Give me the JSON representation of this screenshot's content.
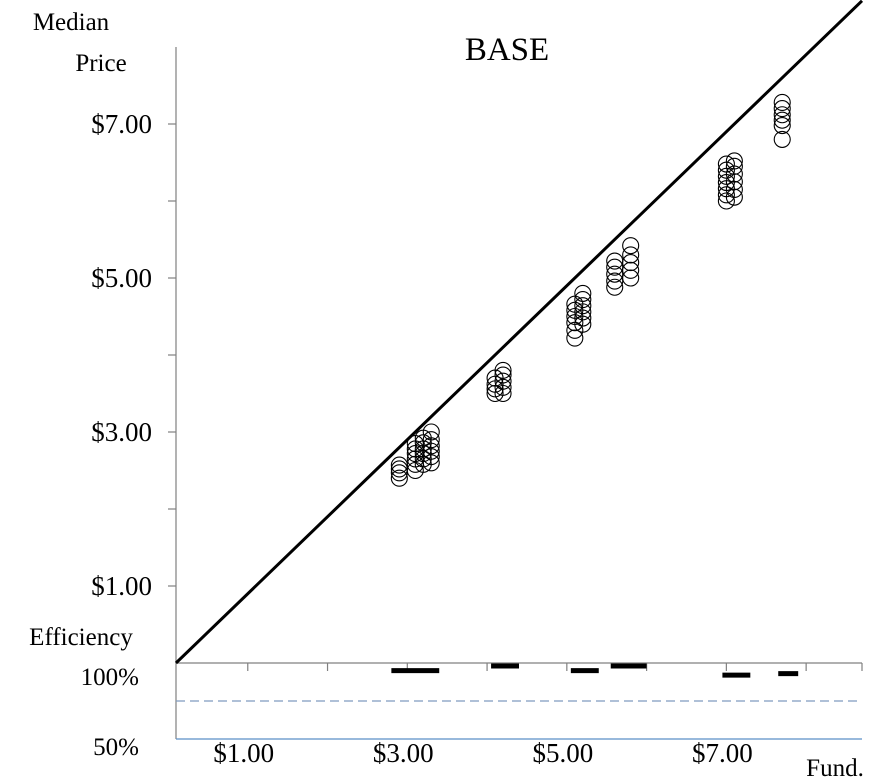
{
  "chart_data": {
    "type": "scatter",
    "title": "BASE",
    "y_axis_label_lines": [
      "Median",
      "Price"
    ],
    "x_axis_label": "Fund.",
    "efficiency_label": "Efficiency",
    "ylim": [
      0,
      8
    ],
    "xlim": [
      0,
      8.6
    ],
    "y_ticks": [
      1,
      2,
      3,
      4,
      5,
      6,
      7
    ],
    "y_tick_labels": [
      {
        "value": 1,
        "label": "$1.00"
      },
      {
        "value": 3,
        "label": "$3.00"
      },
      {
        "value": 5,
        "label": "$5.00"
      },
      {
        "value": 7,
        "label": "$7.00"
      }
    ],
    "x_ticks": [
      1,
      2,
      3,
      4,
      5,
      6,
      7,
      8
    ],
    "x_tick_labels": [
      {
        "value": 1,
        "label": "$1.00"
      },
      {
        "value": 3,
        "label": "$3.00"
      },
      {
        "value": 5,
        "label": "$5.00"
      },
      {
        "value": 7,
        "label": "$7.00"
      }
    ],
    "reference_line": {
      "name": "",
      "from": [
        0,
        0
      ],
      "to": [
        8.6,
        8.6
      ],
      "color": "#000000"
    },
    "marker_color": "#000000",
    "series": [
      {
        "name": "",
        "points": [
          {
            "x": 2.8,
            "y": 2.4
          },
          {
            "x": 2.8,
            "y": 2.47
          },
          {
            "x": 2.8,
            "y": 2.52
          },
          {
            "x": 2.8,
            "y": 2.57
          },
          {
            "x": 3.0,
            "y": 2.5
          },
          {
            "x": 3.0,
            "y": 2.58
          },
          {
            "x": 3.0,
            "y": 2.65
          },
          {
            "x": 3.0,
            "y": 2.72
          },
          {
            "x": 3.0,
            "y": 2.78
          },
          {
            "x": 3.0,
            "y": 2.85
          },
          {
            "x": 3.1,
            "y": 2.58
          },
          {
            "x": 3.1,
            "y": 2.65
          },
          {
            "x": 3.1,
            "y": 2.72
          },
          {
            "x": 3.1,
            "y": 2.78
          },
          {
            "x": 3.1,
            "y": 2.86
          },
          {
            "x": 3.1,
            "y": 2.92
          },
          {
            "x": 3.2,
            "y": 2.6
          },
          {
            "x": 3.2,
            "y": 2.68
          },
          {
            "x": 3.2,
            "y": 2.75
          },
          {
            "x": 3.2,
            "y": 2.82
          },
          {
            "x": 3.2,
            "y": 2.9
          },
          {
            "x": 3.2,
            "y": 3.0
          },
          {
            "x": 4.0,
            "y": 3.5
          },
          {
            "x": 4.0,
            "y": 3.56
          },
          {
            "x": 4.0,
            "y": 3.62
          },
          {
            "x": 4.0,
            "y": 3.7
          },
          {
            "x": 4.1,
            "y": 3.5
          },
          {
            "x": 4.1,
            "y": 3.58
          },
          {
            "x": 4.1,
            "y": 3.66
          },
          {
            "x": 4.1,
            "y": 3.74
          },
          {
            "x": 4.1,
            "y": 3.8
          },
          {
            "x": 5.0,
            "y": 4.22
          },
          {
            "x": 5.0,
            "y": 4.32
          },
          {
            "x": 5.0,
            "y": 4.42
          },
          {
            "x": 5.0,
            "y": 4.5
          },
          {
            "x": 5.0,
            "y": 4.58
          },
          {
            "x": 5.0,
            "y": 4.66
          },
          {
            "x": 5.1,
            "y": 4.4
          },
          {
            "x": 5.1,
            "y": 4.48
          },
          {
            "x": 5.1,
            "y": 4.56
          },
          {
            "x": 5.1,
            "y": 4.64
          },
          {
            "x": 5.1,
            "y": 4.72
          },
          {
            "x": 5.1,
            "y": 4.8
          },
          {
            "x": 5.5,
            "y": 4.88
          },
          {
            "x": 5.5,
            "y": 4.96
          },
          {
            "x": 5.5,
            "y": 5.05
          },
          {
            "x": 5.5,
            "y": 5.14
          },
          {
            "x": 5.5,
            "y": 5.22
          },
          {
            "x": 5.7,
            "y": 5.0
          },
          {
            "x": 5.7,
            "y": 5.1
          },
          {
            "x": 5.7,
            "y": 5.2
          },
          {
            "x": 5.7,
            "y": 5.3
          },
          {
            "x": 5.7,
            "y": 5.42
          },
          {
            "x": 6.9,
            "y": 6.0
          },
          {
            "x": 6.9,
            "y": 6.08
          },
          {
            "x": 6.9,
            "y": 6.16
          },
          {
            "x": 6.9,
            "y": 6.24
          },
          {
            "x": 6.9,
            "y": 6.32
          },
          {
            "x": 6.9,
            "y": 6.4
          },
          {
            "x": 6.9,
            "y": 6.48
          },
          {
            "x": 7.0,
            "y": 6.05
          },
          {
            "x": 7.0,
            "y": 6.15
          },
          {
            "x": 7.0,
            "y": 6.25
          },
          {
            "x": 7.0,
            "y": 6.35
          },
          {
            "x": 7.0,
            "y": 6.45
          },
          {
            "x": 7.0,
            "y": 6.52
          },
          {
            "x": 7.6,
            "y": 6.8
          },
          {
            "x": 7.6,
            "y": 6.98
          },
          {
            "x": 7.6,
            "y": 7.05
          },
          {
            "x": 7.6,
            "y": 7.12
          },
          {
            "x": 7.6,
            "y": 7.2
          },
          {
            "x": 7.6,
            "y": 7.28
          }
        ]
      }
    ],
    "efficiency": {
      "ylim": [
        50,
        100
      ],
      "y_tick_labels": [
        {
          "value": 100,
          "label": "100%"
        },
        {
          "value": 50,
          "label": "50%"
        }
      ],
      "bar_color": "#000000",
      "marks": [
        {
          "x_from": 2.7,
          "x_to": 3.3,
          "value": 95
        },
        {
          "x_from": 3.95,
          "x_to": 4.3,
          "value": 98
        },
        {
          "x_from": 4.95,
          "x_to": 5.3,
          "value": 95
        },
        {
          "x_from": 5.45,
          "x_to": 5.9,
          "value": 98
        },
        {
          "x_from": 6.85,
          "x_to": 7.2,
          "value": 92
        },
        {
          "x_from": 7.55,
          "x_to": 7.8,
          "value": 93
        }
      ],
      "reference_lines": [
        {
          "value": 75,
          "style": "dashed",
          "color": "#7f9bbf"
        },
        {
          "value": 50,
          "style": "solid",
          "color": "#5b8fc7"
        }
      ]
    }
  }
}
